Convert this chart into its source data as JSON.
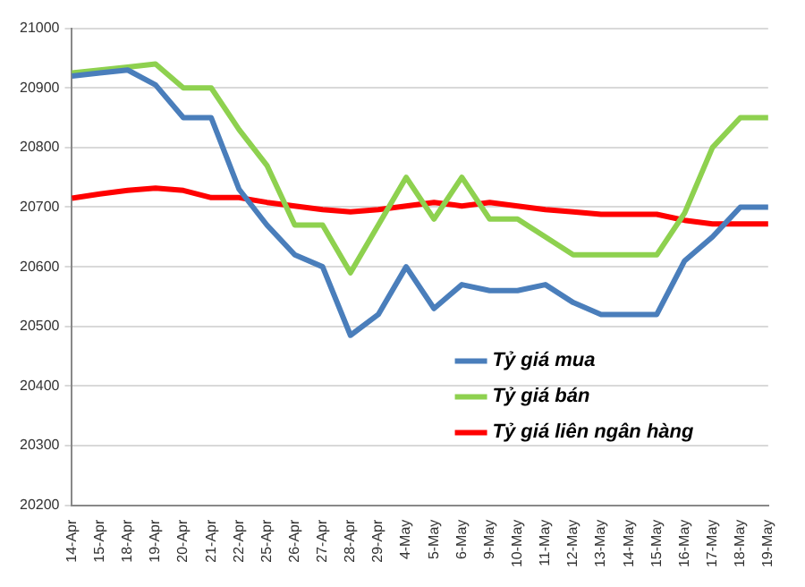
{
  "chart_data": {
    "type": "line",
    "categories": [
      "14-Apr",
      "15-Apr",
      "18-Apr",
      "19-Apr",
      "20-Apr",
      "21-Apr",
      "22-Apr",
      "25-Apr",
      "26-Apr",
      "27-Apr",
      "28-Apr",
      "29-Apr",
      "4-May",
      "5-May",
      "6-May",
      "9-May",
      "10-May",
      "11-May",
      "12-May",
      "13-May",
      "14-May",
      "15-May",
      "16-May",
      "17-May",
      "18-May",
      "19-May"
    ],
    "series": [
      {
        "name": "Tỷ giá mua",
        "color": "#4a7ebb",
        "values": [
          20920,
          20925,
          20930,
          20905,
          20850,
          20850,
          20730,
          20670,
          20620,
          20600,
          20485,
          20520,
          20600,
          20530,
          20570,
          20560,
          20560,
          20570,
          20540,
          20520,
          20520,
          20520,
          20610,
          20650,
          20700,
          20700
        ]
      },
      {
        "name": "Tỷ giá bán",
        "color": "#8ed14f",
        "values": [
          20925,
          20930,
          20935,
          20940,
          20900,
          20900,
          20830,
          20770,
          20670,
          20670,
          20590,
          20670,
          20750,
          20680,
          20750,
          20680,
          20680,
          20650,
          20620,
          20620,
          20620,
          20620,
          20690,
          20800,
          20850,
          20850
        ]
      },
      {
        "name": "Tỷ giá liên ngân hàng",
        "color": "#ff0000",
        "values": [
          20715,
          20722,
          20728,
          20732,
          20728,
          20716,
          20716,
          20708,
          20702,
          20696,
          20692,
          20696,
          20702,
          20708,
          20702,
          20708,
          20702,
          20696,
          20692,
          20688,
          20688,
          20688,
          20678,
          20672,
          20672,
          20672
        ]
      }
    ],
    "ylim": [
      20200,
      21000
    ],
    "yticks": [
      20200,
      20300,
      20400,
      20500,
      20600,
      20700,
      20800,
      20900,
      21000
    ],
    "grid": "y",
    "legend": "bottom right",
    "marker": "none",
    "line_style": "solid"
  }
}
